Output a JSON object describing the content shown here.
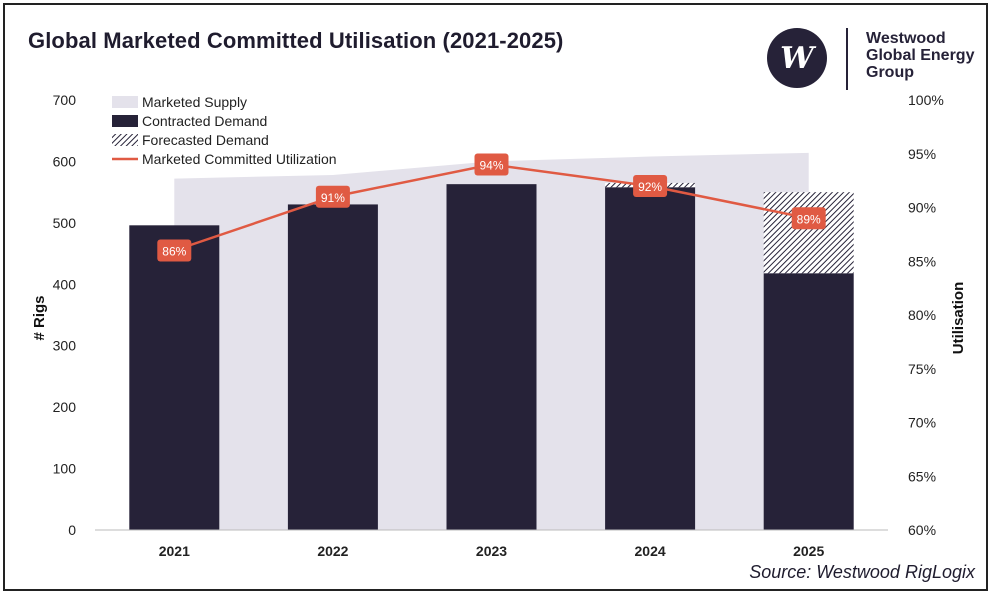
{
  "title": "Global Marketed Committed Utilisation (2021-2025)",
  "logo": {
    "letter": "W",
    "line1": "Westwood",
    "line2": "Global Energy",
    "line3": "Group"
  },
  "source": "Source: Westwood RigLogix",
  "colors": {
    "supply": "#e4e2eb",
    "contracted": "#262238",
    "forecast_stripe": "#262238",
    "line": "#e05a43",
    "label_bg": "#e05a43"
  },
  "chart_data": {
    "type": "bar",
    "title": "Global Marketed Committed Utilisation (2021-2025)",
    "categories": [
      "2021",
      "2022",
      "2023",
      "2024",
      "2025"
    ],
    "ylabel": "# Rigs",
    "y2label": "Utilisation",
    "ylim": [
      0,
      700
    ],
    "y2lim": [
      60,
      100
    ],
    "yticks": [
      "0",
      "100",
      "200",
      "300",
      "400",
      "500",
      "600",
      "700"
    ],
    "y2ticks": [
      "60%",
      "65%",
      "70%",
      "75%",
      "80%",
      "85%",
      "90%",
      "95%",
      "100%"
    ],
    "legend": [
      "Marketed Supply",
      "Contracted Demand",
      "Forecasted Demand",
      "Marketed Committed Utilization"
    ],
    "series": [
      {
        "name": "Marketed Supply",
        "type": "area",
        "values": [
          572,
          578,
          600,
          608,
          614
        ]
      },
      {
        "name": "Contracted Demand",
        "type": "bar",
        "values": [
          496,
          530,
          563,
          558,
          418
        ]
      },
      {
        "name": "Forecasted Demand",
        "type": "bar",
        "values": [
          0,
          0,
          0,
          7,
          132
        ]
      },
      {
        "name": "Marketed Committed Utilization",
        "type": "line",
        "axis": "right",
        "values": [
          86,
          91,
          94,
          92,
          89
        ],
        "labels": [
          "86%",
          "91%",
          "94%",
          "92%",
          "89%"
        ]
      }
    ]
  }
}
